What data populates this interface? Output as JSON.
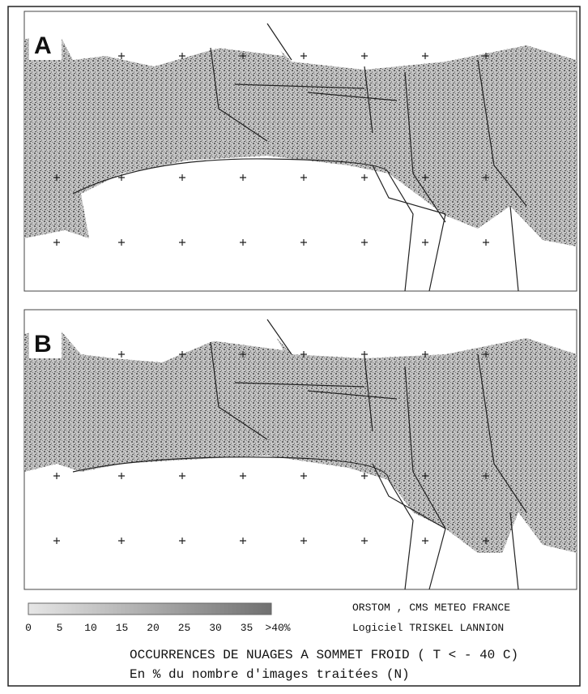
{
  "panels": [
    {
      "label": "A"
    },
    {
      "label": "B"
    }
  ],
  "legend": {
    "labels": [
      "0",
      "5",
      "10",
      "15",
      "20",
      "25",
      "30",
      "35",
      ">40%"
    ]
  },
  "credits": [
    "ORSTOM , CMS METEO FRANCE",
    "Logiciel TRISKEL   LANNION"
  ],
  "title": [
    "OCCURRENCES DE NUAGES A SOMMET FROID ( T < - 40 C)",
    "En % du nombre d'images traitées (N)"
  ]
}
